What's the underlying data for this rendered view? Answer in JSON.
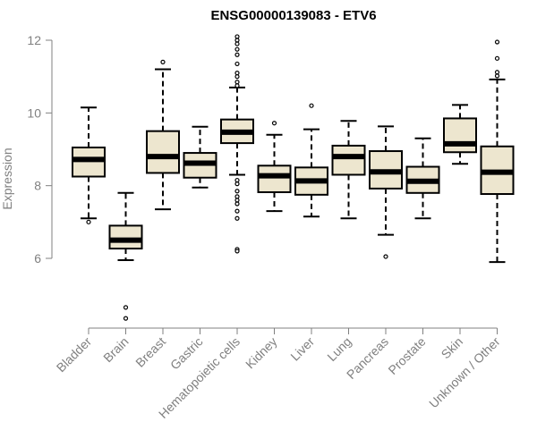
{
  "chart_data": {
    "type": "boxplot",
    "title": "ENSG00000139083 - ETV6",
    "xlabel": "",
    "ylabel": "Expression",
    "ylim": [
      4.0,
      12.0
    ],
    "yticks": [
      6,
      8,
      10,
      12
    ],
    "colors": {
      "box_fill": "#EDE6CF",
      "box_stroke": "#000000",
      "axis": "#808080",
      "tick_text": "#808080"
    },
    "categories": [
      "Bladder",
      "Brain",
      "Breast",
      "Gastric",
      "Hematopoietic cells",
      "Kidney",
      "Liver",
      "Lung",
      "Pancreas",
      "Prostate",
      "Skin",
      "Unknown / Other"
    ],
    "boxes": [
      {
        "category": "Bladder",
        "whisker_low": 7.1,
        "q1": 8.25,
        "median": 8.72,
        "q3": 9.05,
        "whisker_high": 10.15,
        "outliers": [
          7.0
        ]
      },
      {
        "category": "Brain",
        "whisker_low": 5.95,
        "q1": 6.27,
        "median": 6.5,
        "q3": 6.9,
        "whisker_high": 7.8,
        "outliers": [
          4.65,
          4.35
        ]
      },
      {
        "category": "Breast",
        "whisker_low": 7.35,
        "q1": 8.35,
        "median": 8.8,
        "q3": 9.5,
        "whisker_high": 11.2,
        "outliers": [
          11.4
        ]
      },
      {
        "category": "Gastric",
        "whisker_low": 7.95,
        "q1": 8.22,
        "median": 8.62,
        "q3": 8.9,
        "whisker_high": 9.62,
        "outliers": []
      },
      {
        "category": "Hematopoietic cells",
        "whisker_low": 8.3,
        "q1": 9.17,
        "median": 9.47,
        "q3": 9.82,
        "whisker_high": 10.7,
        "outliers": [
          12.1,
          12.0,
          11.9,
          11.75,
          11.6,
          11.35,
          11.1,
          11.0,
          10.85,
          10.75,
          8.15,
          8.05,
          7.85,
          7.7,
          7.6,
          7.5,
          7.3,
          7.1,
          6.25,
          6.2
        ]
      },
      {
        "category": "Kidney",
        "whisker_low": 7.3,
        "q1": 7.82,
        "median": 8.27,
        "q3": 8.55,
        "whisker_high": 9.4,
        "outliers": [
          9.72
        ]
      },
      {
        "category": "Liver",
        "whisker_low": 7.15,
        "q1": 7.75,
        "median": 8.13,
        "q3": 8.5,
        "whisker_high": 9.55,
        "outliers": [
          10.2
        ]
      },
      {
        "category": "Lung",
        "whisker_low": 7.1,
        "q1": 8.3,
        "median": 8.8,
        "q3": 9.1,
        "whisker_high": 9.78,
        "outliers": []
      },
      {
        "category": "Pancreas",
        "whisker_low": 6.65,
        "q1": 7.92,
        "median": 8.38,
        "q3": 8.95,
        "whisker_high": 9.63,
        "outliers": [
          6.05
        ]
      },
      {
        "category": "Prostate",
        "whisker_low": 7.1,
        "q1": 7.8,
        "median": 8.12,
        "q3": 8.52,
        "whisker_high": 9.3,
        "outliers": []
      },
      {
        "category": "Skin",
        "whisker_low": 8.6,
        "q1": 8.92,
        "median": 9.15,
        "q3": 9.85,
        "whisker_high": 10.22,
        "outliers": []
      },
      {
        "category": "Unknown / Other",
        "whisker_low": 5.9,
        "q1": 7.77,
        "median": 8.37,
        "q3": 9.08,
        "whisker_high": 10.92,
        "outliers": [
          11.95,
          11.5,
          11.12,
          11.02
        ]
      }
    ]
  }
}
